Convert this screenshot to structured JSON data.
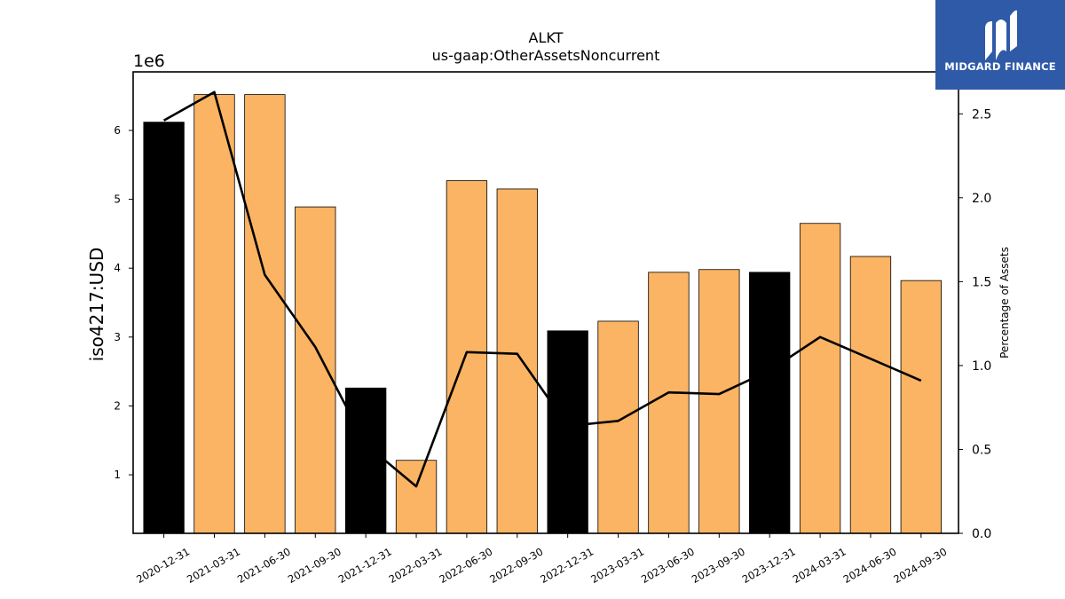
{
  "chart_data": {
    "type": "bar",
    "title": "ALKT",
    "subtitle": "us-gaap:OtherAssetsNoncurrent",
    "ylabel": "iso4217:USD",
    "y2label": "Percentage of Assets",
    "offset_label": "1e6",
    "categories": [
      "2020-12-31",
      "2021-03-31",
      "2021-06-30",
      "2021-09-30",
      "2021-12-31",
      "2022-03-31",
      "2022-06-30",
      "2022-09-30",
      "2022-12-31",
      "2023-03-31",
      "2023-06-30",
      "2023-09-30",
      "2023-12-31",
      "2024-03-31",
      "2024-06-30",
      "2024-09-30"
    ],
    "bar_values": [
      6120000,
      6520000,
      6520000,
      4890000,
      2260000,
      1210000,
      5270000,
      5150000,
      3090000,
      3230000,
      3940000,
      3980000,
      3940000,
      4650000,
      4170000,
      3820000
    ],
    "bar_highlight": [
      true,
      false,
      false,
      false,
      true,
      false,
      false,
      false,
      true,
      false,
      false,
      false,
      true,
      false,
      false,
      false
    ],
    "line_values": [
      2.46,
      2.63,
      1.54,
      1.11,
      0.53,
      0.28,
      1.08,
      1.07,
      0.64,
      0.67,
      0.84,
      0.83,
      0.97,
      1.17,
      1.04,
      0.91
    ],
    "ylim": [
      150000,
      6850000
    ],
    "y2lim": [
      0,
      2.75
    ],
    "yticks": [
      1000000,
      2000000,
      3000000,
      4000000,
      5000000,
      6000000
    ],
    "ytick_labels": [
      "1",
      "2",
      "3",
      "4",
      "5",
      "6"
    ],
    "y2ticks": [
      0,
      0.5,
      1.0,
      1.5,
      2.0,
      2.5
    ],
    "y2tick_labels": [
      "0.0",
      "0.5",
      "1.0",
      "1.5",
      "2.0",
      "2.5"
    ],
    "colors": {
      "bar": "#fbb463",
      "bar_highlight": "#000000",
      "line": "#000000"
    }
  },
  "logo": {
    "text": "MIDGARD FINANCE",
    "icon": "midgard-logo-icon"
  }
}
